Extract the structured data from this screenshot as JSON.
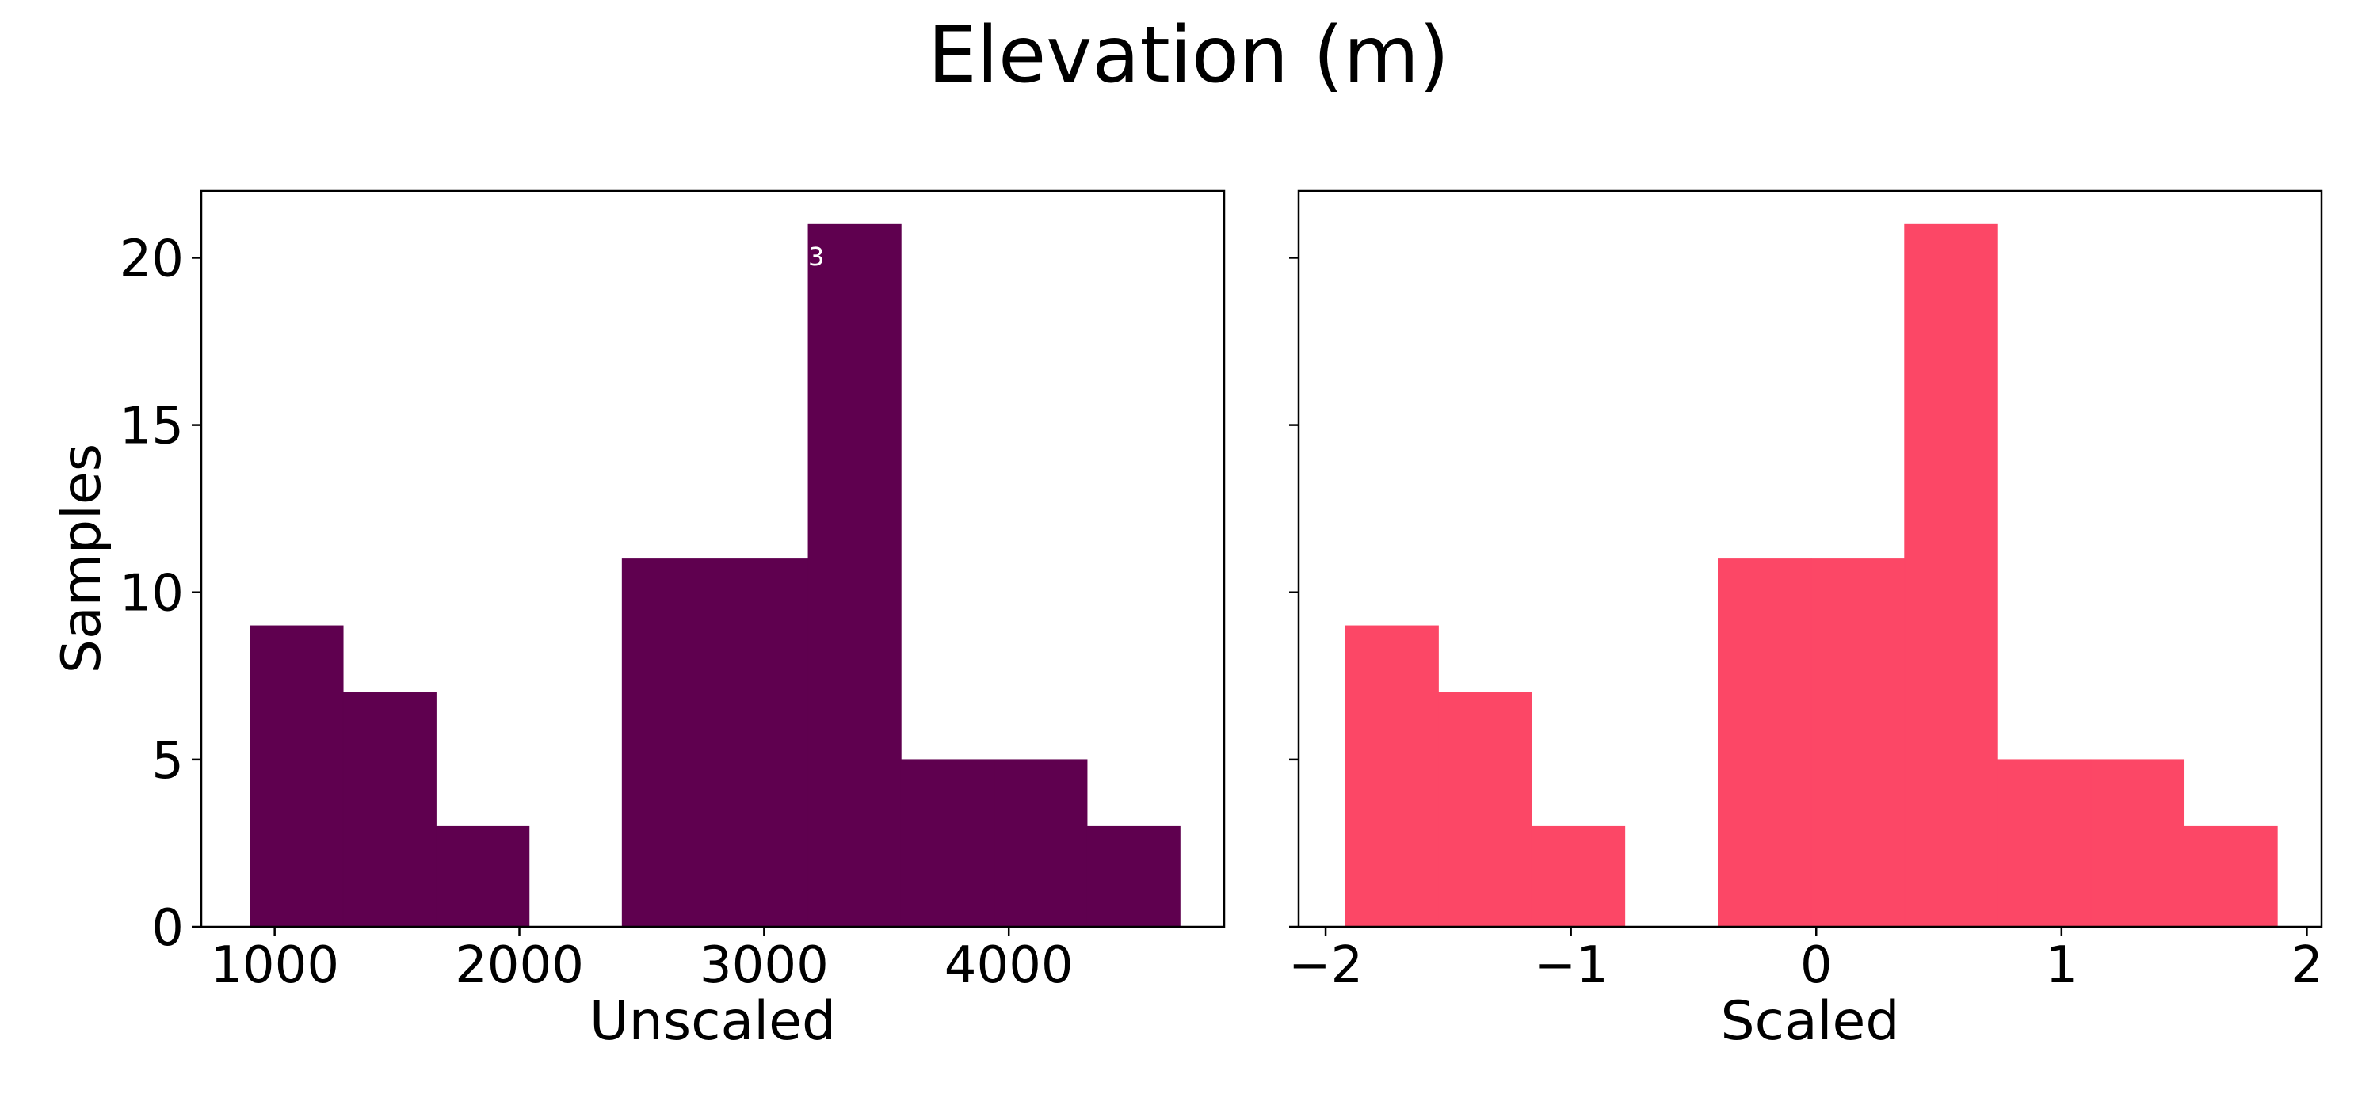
{
  "figure": {
    "title": "Elevation (m)"
  },
  "chart_data": [
    {
      "type": "bar",
      "subtype": "histogram",
      "title": "",
      "xlabel": "Unscaled",
      "ylabel": "Samples",
      "bin_edges": [
        900,
        1280,
        1660,
        2040,
        2420,
        2800,
        3180,
        3560,
        3940,
        4320,
        4700
      ],
      "values": [
        9,
        7,
        3,
        0,
        11,
        11,
        21,
        5,
        5,
        3
      ],
      "xlim": [
        700,
        4880
      ],
      "ylim": [
        0,
        22
      ],
      "xticks": [
        1000,
        2000,
        3000,
        4000
      ],
      "xtick_labels": [
        "1000",
        "2000",
        "3000",
        "4000"
      ],
      "yticks": [
        0,
        5,
        10,
        15,
        20
      ],
      "ytick_labels": [
        "0",
        "5",
        "10",
        "15",
        "20"
      ],
      "color": "#5f004f",
      "annotation": "3",
      "grid": false
    },
    {
      "type": "bar",
      "subtype": "histogram",
      "title": "",
      "xlabel": "Scaled",
      "ylabel": "",
      "bin_edges": [
        -1.92,
        -1.54,
        -1.16,
        -0.78,
        -0.4,
        -0.02,
        0.36,
        0.74,
        1.12,
        1.5,
        1.88
      ],
      "values": [
        9,
        7,
        3,
        0,
        11,
        11,
        21,
        5,
        5,
        3
      ],
      "xlim": [
        -2.11,
        2.06
      ],
      "ylim": [
        0,
        22
      ],
      "xticks": [
        -2,
        -1,
        0,
        1,
        2
      ],
      "xtick_labels": [
        "−2",
        "−1",
        "0",
        "1",
        "2"
      ],
      "yticks": [
        0,
        5,
        10,
        15,
        20
      ],
      "ytick_labels": [
        "",
        "",
        "",
        "",
        ""
      ],
      "color": "#fc4766",
      "grid": false
    }
  ]
}
